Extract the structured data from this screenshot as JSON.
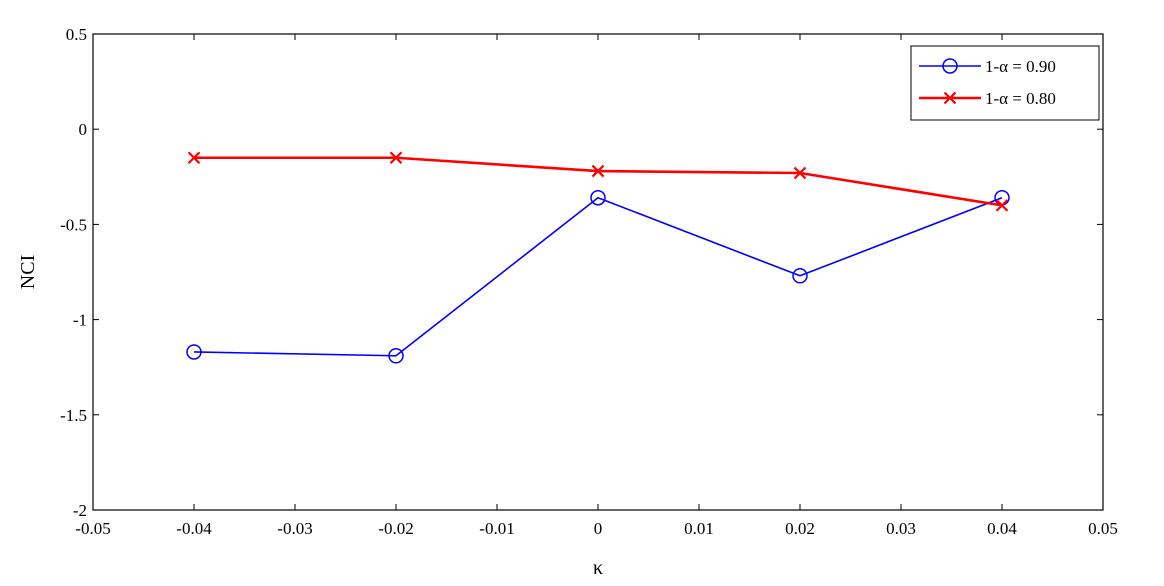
{
  "chart_data": {
    "type": "line",
    "title": "",
    "xlabel": "κ",
    "ylabel": "NCI",
    "xlim": [
      -0.05,
      0.05
    ],
    "ylim": [
      -2,
      0.5
    ],
    "x_ticks": [
      -0.05,
      -0.04,
      -0.03,
      -0.02,
      -0.01,
      0,
      0.01,
      0.02,
      0.03,
      0.04,
      0.05
    ],
    "x_tick_labels": [
      "-0.05",
      "-0.04",
      "-0.03",
      "-0.02",
      "-0.01",
      "0",
      "0.01",
      "0.02",
      "0.03",
      "0.04",
      "0.05"
    ],
    "y_ticks": [
      -2,
      -1.5,
      -1,
      -0.5,
      0,
      0.5
    ],
    "y_tick_labels": [
      "-2",
      "-1.5",
      "-1",
      "-0.5",
      "0",
      "0.5"
    ],
    "grid": false,
    "legend_position": "top-right",
    "x": [
      -0.04,
      -0.02,
      0,
      0.02,
      0.04
    ],
    "series": [
      {
        "name": "1-α = 0.90",
        "values": [
          -1.17,
          -1.19,
          -0.36,
          -0.77,
          -0.36
        ],
        "color": "#0000ff",
        "marker": "circle"
      },
      {
        "name": "1-α = 0.80",
        "values": [
          -0.15,
          -0.15,
          -0.22,
          -0.23,
          -0.4
        ],
        "color": "#ff0000",
        "marker": "x"
      }
    ]
  }
}
